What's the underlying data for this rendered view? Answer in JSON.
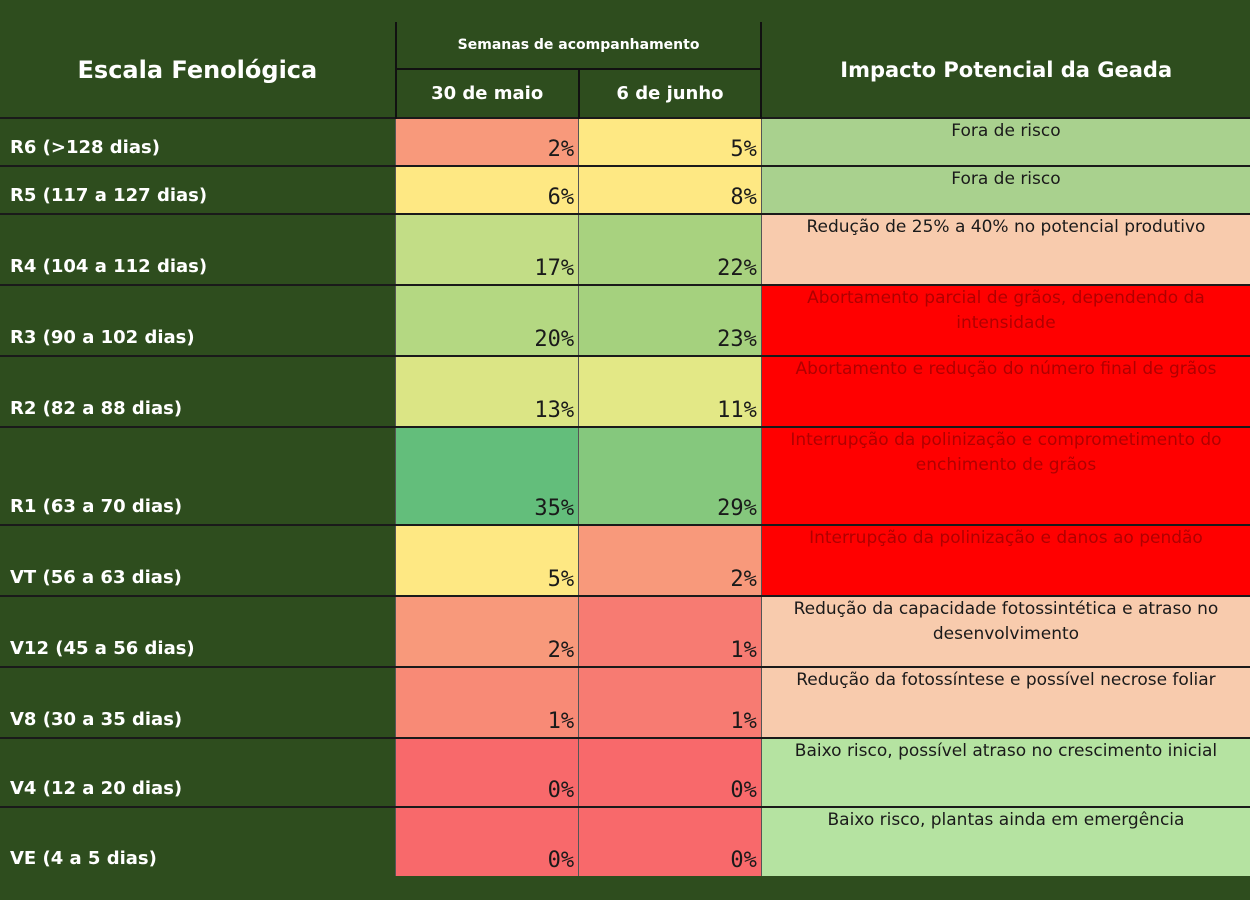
{
  "chart_data": {
    "type": "table",
    "header": {
      "stage": "Escala Fenológica",
      "weeks": "Semanas de acompanhamento",
      "date_1": "30 de maio",
      "date_2": "6 de junho",
      "impact": "Impacto Potencial da Geada"
    },
    "rows": [
      {
        "stage": "R6 (>128 dias)",
        "may": "2%",
        "jun": "5%",
        "impact": "Fora de risco",
        "may_color": "#f8997b",
        "jun_color": "#fee883",
        "impact_color": "#a9d18e",
        "impact_text": "dark"
      },
      {
        "stage": "R5 (117 a 127 dias)",
        "may": "6%",
        "jun": "8%",
        "impact": "Fora de risco",
        "may_color": "#fee883",
        "jun_color": "#fee883",
        "impact_color": "#a9d18e",
        "impact_text": "dark"
      },
      {
        "stage": "R4 (104 a 112 dias)",
        "may": "17%",
        "jun": "22%",
        "impact": "Redução de 25% a 40% no potencial produtivo",
        "may_color": "#c2dd86",
        "jun_color": "#a8d27f",
        "impact_color": "#f8cbad",
        "impact_text": "dark"
      },
      {
        "stage": "R3 (90 a 102 dias)",
        "may": "20%",
        "jun": "23%",
        "impact": "Abortamento parcial de grãos, dependendo da intensidade",
        "may_color": "#b4d882",
        "jun_color": "#a5d17e",
        "impact_color": "#ff0000",
        "impact_text": "red"
      },
      {
        "stage": "R2 (82 a 88 dias)",
        "may": "13%",
        "jun": "11%",
        "impact": "Abortamento e redução do número final de grãos",
        "may_color": "#dbe585",
        "jun_color": "#e3e886",
        "impact_color": "#ff0000",
        "impact_text": "red"
      },
      {
        "stage": "R1 (63 a 70 dias)",
        "may": "35%",
        "jun": "29%",
        "impact": "Interrupção da polinização e comprometimento do enchimento de grãos",
        "may_color": "#63be7b",
        "jun_color": "#85c87d",
        "impact_color": "#ff0000",
        "impact_text": "red"
      },
      {
        "stage": "VT (56 a 63 dias)",
        "may": "5%",
        "jun": "2%",
        "impact": "Interrupção da polinização e danos ao pendão",
        "may_color": "#fee883",
        "jun_color": "#f8997b",
        "impact_color": "#ff0000",
        "impact_text": "red"
      },
      {
        "stage": "V12 (45 a 56 dias)",
        "may": "2%",
        "jun": "1%",
        "impact": "Redução da capacidade fotossintética e atraso no desenvolvimento",
        "may_color": "#f8997b",
        "jun_color": "#f77b72",
        "impact_color": "#f8cbad",
        "impact_text": "dark"
      },
      {
        "stage": "V8 (30 a 35 dias)",
        "may": "1%",
        "jun": "1%",
        "impact": "Redução da fotossíntese e possível necrose foliar",
        "may_color": "#f88a76",
        "jun_color": "#f77b72",
        "impact_color": "#f8cbad",
        "impact_text": "dark"
      },
      {
        "stage": "V4 (12 a 20 dias)",
        "may": "0%",
        "jun": "0%",
        "impact": "Baixo risco, possível atraso no crescimento inicial",
        "may_color": "#f8696b",
        "jun_color": "#f8696b",
        "impact_color": "#b5e3a1",
        "impact_text": "dark"
      },
      {
        "stage": "VE (4 a 5 dias)",
        "may": "0%",
        "jun": "0%",
        "impact": "Baixo risco, plantas ainda em emergência",
        "may_color": "#f8696b",
        "jun_color": "#f8696b",
        "impact_color": "#b5e3a1",
        "impact_text": "dark"
      }
    ]
  }
}
